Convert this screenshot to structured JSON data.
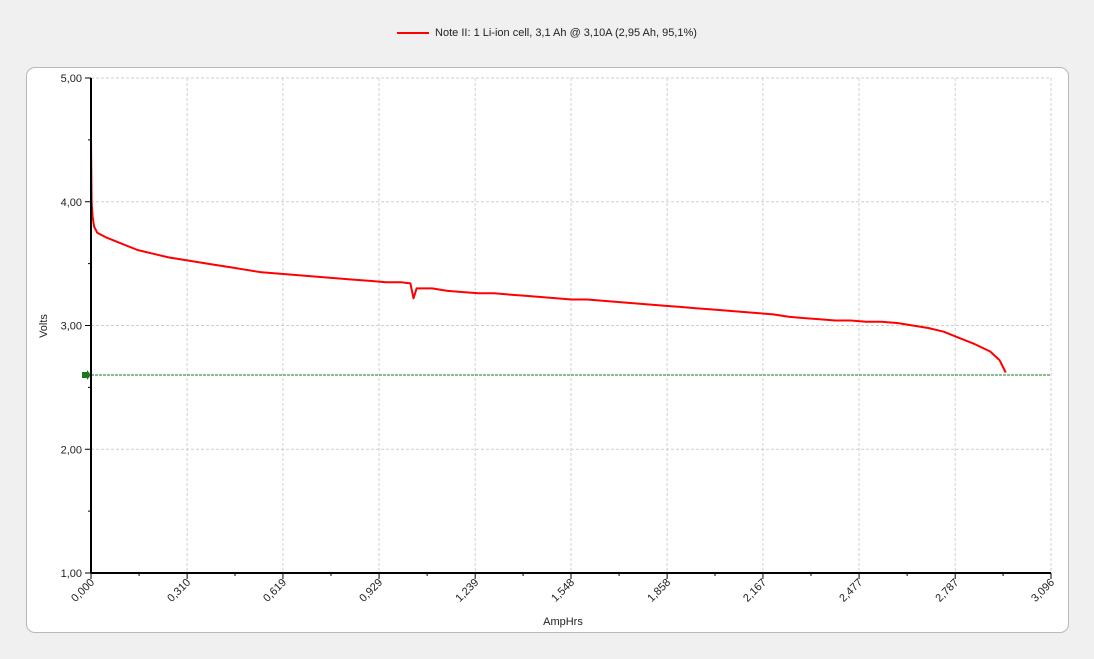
{
  "legend": {
    "series_label": "Note II: 1 Li-ion cell, 3,1 Ah @ 3,10A (2,95 Ah, 95,1%)"
  },
  "colors": {
    "series": "#ff0000",
    "cutoff_line": "#1a7a1a",
    "grid": "#cfcfcf",
    "axis": "#000000"
  },
  "chart_data": {
    "type": "line",
    "xlabel": "AmpHrs",
    "ylabel": "Volts",
    "xlim": [
      0.0,
      3.096
    ],
    "ylim": [
      1.0,
      5.0
    ],
    "x_ticks": [
      "0,000",
      "0,310",
      "0,619",
      "0,929",
      "1,239",
      "1,548",
      "1,858",
      "2,167",
      "2,477",
      "2,787",
      "3,096"
    ],
    "y_ticks": [
      "1,00",
      "2,00",
      "3,00",
      "4,00",
      "5,00"
    ],
    "grid": true,
    "cutoff_voltage": 2.6,
    "series": [
      {
        "name": "Note II: 1 Li-ion cell, 3,1 Ah @ 3,10A (2,95 Ah, 95,1%)",
        "x": [
          0.0,
          0.002,
          0.005,
          0.01,
          0.02,
          0.05,
          0.1,
          0.15,
          0.2,
          0.25,
          0.3,
          0.35,
          0.4,
          0.45,
          0.5,
          0.55,
          0.6,
          0.65,
          0.7,
          0.75,
          0.8,
          0.85,
          0.9,
          0.95,
          1.0,
          1.03,
          1.04,
          1.05,
          1.1,
          1.15,
          1.2,
          1.25,
          1.3,
          1.35,
          1.4,
          1.45,
          1.5,
          1.55,
          1.6,
          1.65,
          1.7,
          1.75,
          1.8,
          1.85,
          1.9,
          1.95,
          2.0,
          2.05,
          2.1,
          2.15,
          2.2,
          2.25,
          2.3,
          2.35,
          2.4,
          2.45,
          2.5,
          2.55,
          2.6,
          2.65,
          2.7,
          2.75,
          2.8,
          2.85,
          2.9,
          2.93,
          2.95
        ],
        "y": [
          4.5,
          4.0,
          3.88,
          3.8,
          3.75,
          3.71,
          3.66,
          3.61,
          3.58,
          3.55,
          3.53,
          3.51,
          3.49,
          3.47,
          3.45,
          3.43,
          3.42,
          3.41,
          3.4,
          3.39,
          3.38,
          3.37,
          3.36,
          3.35,
          3.35,
          3.34,
          3.22,
          3.3,
          3.3,
          3.28,
          3.27,
          3.26,
          3.26,
          3.25,
          3.24,
          3.23,
          3.22,
          3.21,
          3.21,
          3.2,
          3.19,
          3.18,
          3.17,
          3.16,
          3.15,
          3.14,
          3.13,
          3.12,
          3.11,
          3.1,
          3.09,
          3.07,
          3.06,
          3.05,
          3.04,
          3.04,
          3.03,
          3.03,
          3.02,
          3.0,
          2.98,
          2.95,
          2.9,
          2.85,
          2.79,
          2.72,
          2.62
        ]
      }
    ]
  }
}
